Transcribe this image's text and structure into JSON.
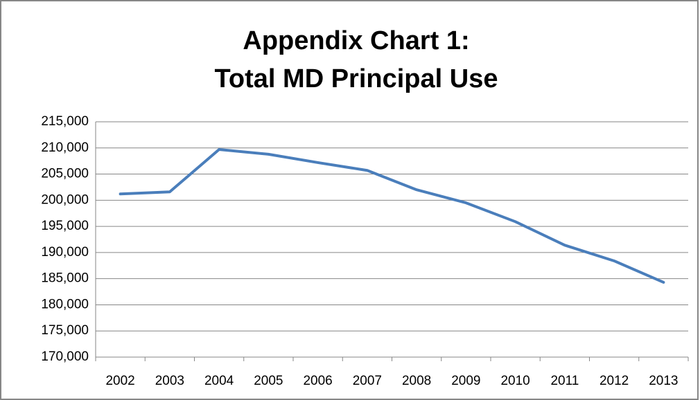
{
  "chart_data": {
    "type": "line",
    "title": [
      "Appendix Chart 1:",
      "Total MD Principal Use"
    ],
    "categories": [
      "2002",
      "2003",
      "2004",
      "2005",
      "2006",
      "2007",
      "2008",
      "2009",
      "2010",
      "2011",
      "2012",
      "2013"
    ],
    "series": [
      {
        "name": "Total MD Principal Use",
        "color": "#4a7ebb",
        "values": [
          201200,
          201600,
          209700,
          208800,
          207200,
          205700,
          202000,
          199500,
          195900,
          191400,
          188400,
          184300
        ]
      }
    ],
    "ylim": [
      170000,
      215000
    ],
    "yticks": [
      {
        "value": 170000,
        "label": "170,000"
      },
      {
        "value": 175000,
        "label": "175,000"
      },
      {
        "value": 180000,
        "label": "180,000"
      },
      {
        "value": 185000,
        "label": "185,000"
      },
      {
        "value": 190000,
        "label": "190,000"
      },
      {
        "value": 195000,
        "label": "195,000"
      },
      {
        "value": 200000,
        "label": "200,000"
      },
      {
        "value": 205000,
        "label": "205,000"
      },
      {
        "value": 210000,
        "label": "210,000"
      },
      {
        "value": 215000,
        "label": "215,000"
      }
    ],
    "grid": true
  }
}
